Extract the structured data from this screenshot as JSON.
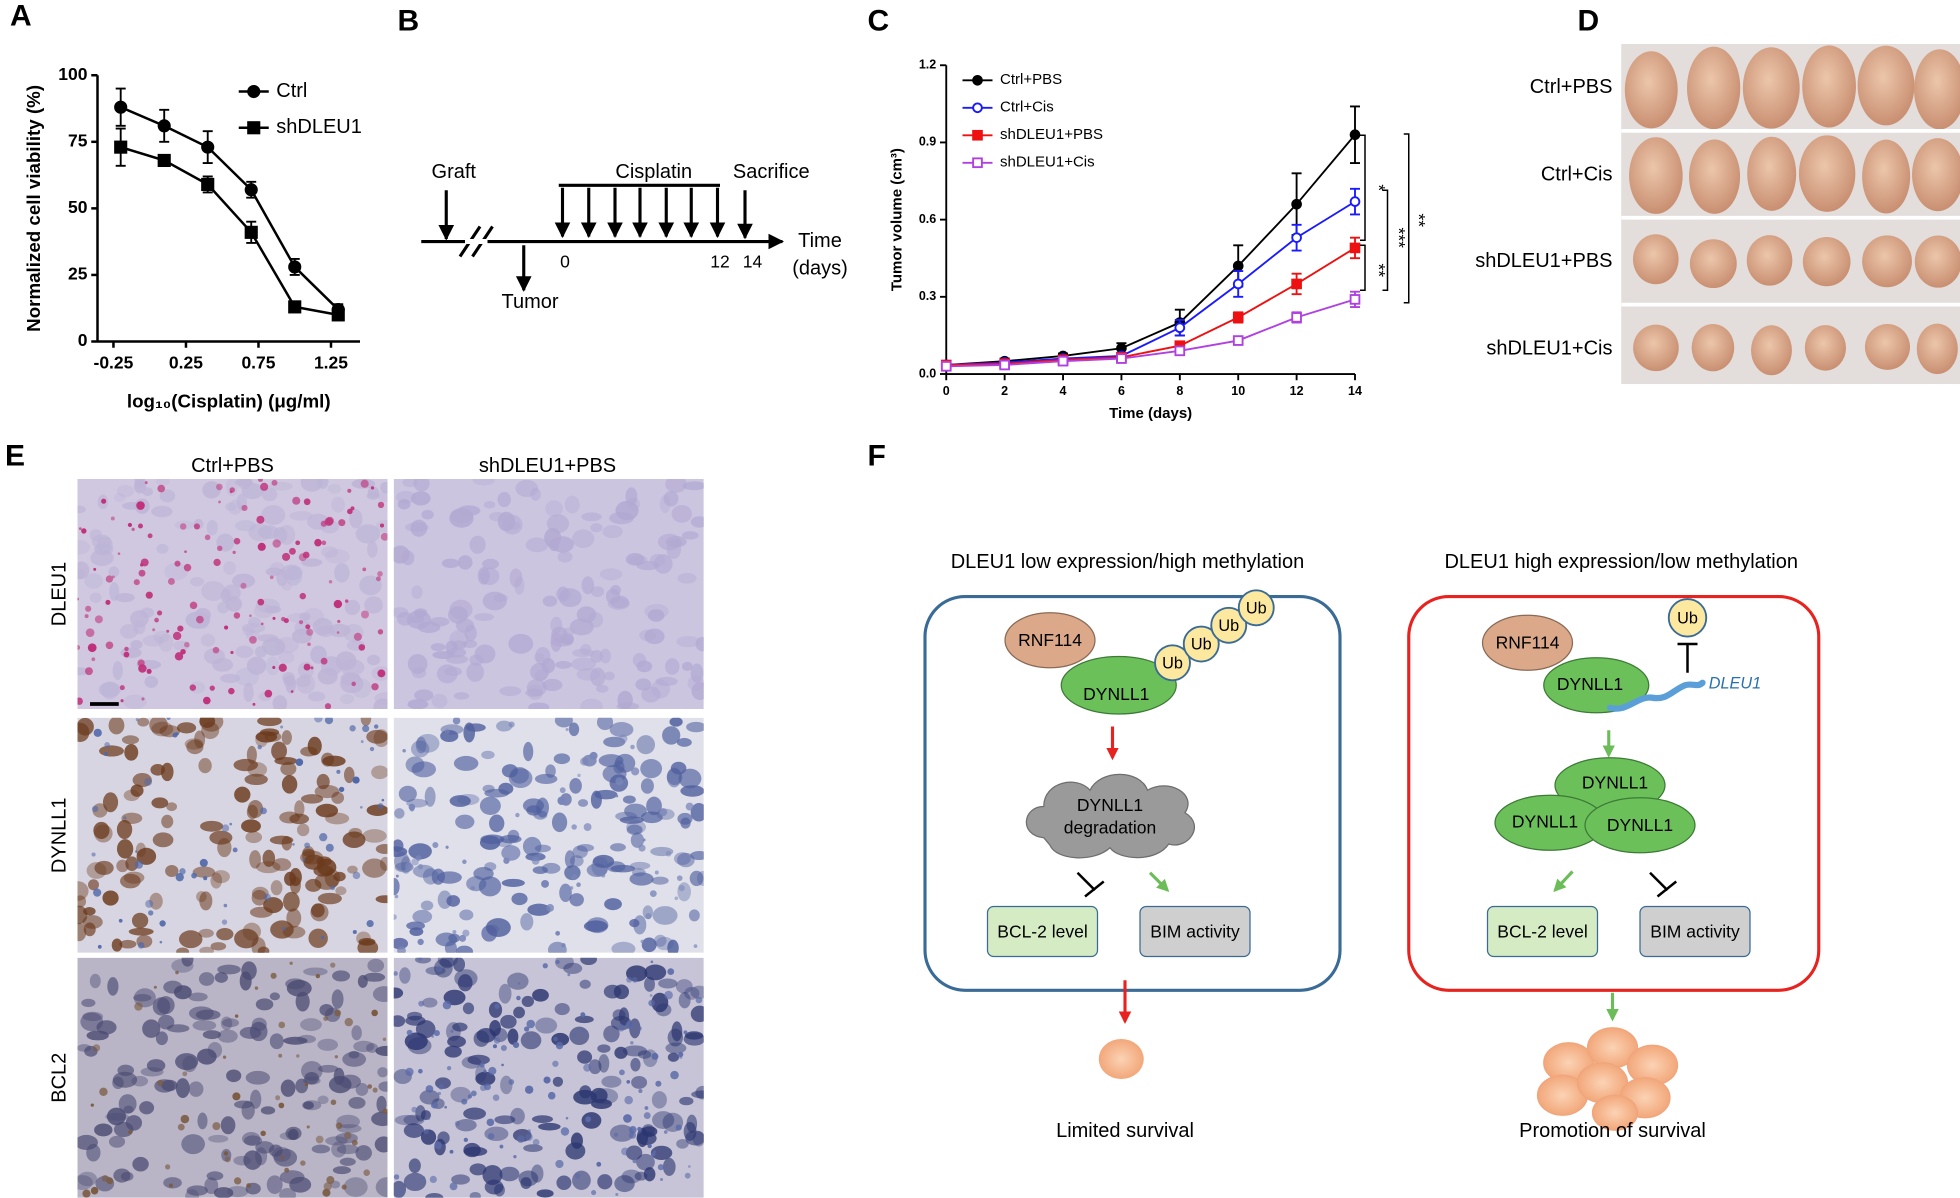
{
  "panel_labels": [
    "A",
    "B",
    "C",
    "D",
    "E",
    "F"
  ],
  "chart_data": [
    {
      "type": "line",
      "xlabel": "log₁₀(Cisplatin) (μg/ml)",
      "ylabel": "Normalized cell viability (%)",
      "x": [
        -0.2,
        0.1,
        0.4,
        0.7,
        1.0,
        1.3
      ],
      "series": [
        {
          "name": "Ctrl",
          "color": "#000000",
          "marker": "circle",
          "filled": true,
          "values": [
            88,
            81,
            73,
            57,
            28,
            12
          ],
          "errors": [
            7,
            6,
            6,
            3,
            3,
            2
          ]
        },
        {
          "name": "shDLEU1",
          "color": "#000000",
          "marker": "square",
          "filled": true,
          "values": [
            73,
            68,
            59,
            41,
            13,
            10
          ],
          "errors": [
            7,
            2,
            3,
            4,
            1,
            2
          ]
        }
      ],
      "xlim": [
        -0.36,
        1.45
      ],
      "xticks": [
        -0.25,
        0.25,
        0.75,
        1.25
      ],
      "ylim": [
        0,
        100
      ],
      "yticks": [
        0,
        25,
        50,
        75,
        100
      ],
      "legend": "upper right"
    },
    {
      "type": "line",
      "xlabel": "Time (days)",
      "ylabel": "Tumor volume (cm³)",
      "x": [
        0,
        2,
        4,
        6,
        8,
        10,
        12,
        14
      ],
      "series": [
        {
          "name": "Ctrl+PBS",
          "color": "#000000",
          "marker": "circle",
          "filled": true,
          "values": [
            0.035,
            0.05,
            0.07,
            0.1,
            0.2,
            0.42,
            0.66,
            0.93
          ],
          "errors": [
            0.005,
            0.01,
            0.01,
            0.02,
            0.05,
            0.08,
            0.12,
            0.11
          ]
        },
        {
          "name": "Ctrl+Cis",
          "color": "#1a1aff",
          "marker": "circle",
          "filled": false,
          "values": [
            0.035,
            0.045,
            0.06,
            0.07,
            0.18,
            0.35,
            0.53,
            0.67
          ],
          "errors": [
            0.005,
            0.005,
            0.01,
            0.01,
            0.03,
            0.05,
            0.05,
            0.05
          ]
        },
        {
          "name": "shDLEU1+PBS",
          "color": "#ee1111",
          "marker": "square",
          "filled": true,
          "values": [
            0.035,
            0.04,
            0.055,
            0.065,
            0.11,
            0.22,
            0.35,
            0.49
          ],
          "errors": [
            0.005,
            0.005,
            0.005,
            0.01,
            0.01,
            0.02,
            0.04,
            0.04
          ]
        },
        {
          "name": "shDLEU1+Cis",
          "color": "#b040e0",
          "marker": "square",
          "filled": false,
          "values": [
            0.03,
            0.035,
            0.05,
            0.06,
            0.09,
            0.13,
            0.22,
            0.29
          ],
          "errors": [
            0.005,
            0.005,
            0.005,
            0.005,
            0.01,
            0.01,
            0.02,
            0.03
          ]
        }
      ],
      "xlim": [
        0,
        14
      ],
      "xticks": [
        0,
        2,
        4,
        6,
        8,
        10,
        12,
        14
      ],
      "ylim": [
        0,
        1.2
      ],
      "yticks": [
        {
          "value": 0,
          "label": "0.0"
        },
        0.3,
        0.6,
        0.9,
        1.2
      ],
      "legend": "upper left",
      "annotations": [
        "*",
        "**",
        "***",
        "**"
      ]
    }
  ],
  "timeline": {
    "graft": "Graft",
    "tumor": "Tumor",
    "drug": "Cisplatin",
    "sacrifice": "Sacrifice",
    "axis_label": [
      "Time",
      "(days)"
    ],
    "ticks": [
      0,
      12,
      14
    ]
  },
  "tumor_photos": {
    "rows": [
      "Ctrl+PBS",
      "Ctrl+Cis",
      "shDLEU1+PBS",
      "shDLEU1+Cis"
    ]
  },
  "ihc": {
    "columns": [
      "Ctrl+PBS",
      "shDLEU1+PBS"
    ],
    "rows": [
      "DLEU1",
      "DYNLL1",
      "BCL2"
    ]
  },
  "model": {
    "left": {
      "title": "DLEU1 low expression/high methylation",
      "rnf": "RNF114",
      "dynll": "DYNLL1",
      "ub": [
        "Ub",
        "Ub",
        "Ub",
        "Ub"
      ],
      "cloud": [
        "DYNLL1",
        "degradation"
      ],
      "bcl": "BCL-2 level",
      "bim": "BIM activity",
      "outcome": "Limited survival"
    },
    "right": {
      "title": "DLEU1 high expression/low methylation",
      "rnf": "RNF114",
      "dynll": "DYNLL1",
      "ub": "Ub",
      "dleu": "DLEU1",
      "dimer": [
        "DYNLL1",
        "DYNLL1",
        "DYNLL1"
      ],
      "bcl": "BCL-2 level",
      "bim": "BIM activity",
      "outcome": "Promotion of survival"
    }
  }
}
